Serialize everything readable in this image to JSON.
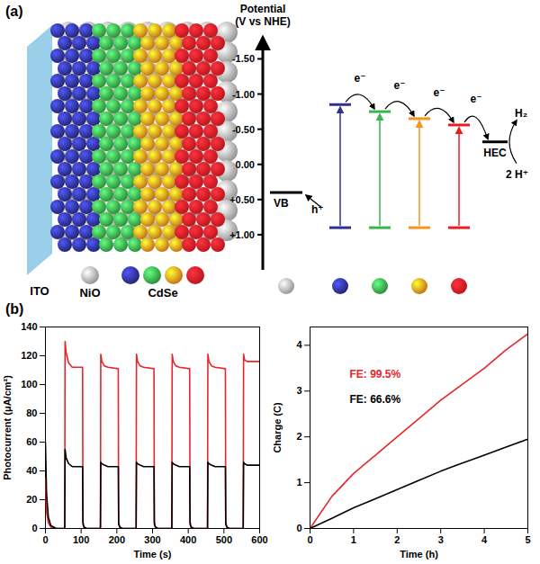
{
  "diagram": {
    "label": "(a)",
    "schematic": {
      "substrate": {
        "label": "ITO",
        "color": "#8ecae6"
      },
      "nio": {
        "label": "NiO",
        "color": "#bdbdbd"
      },
      "cdse": {
        "label": "CdSe",
        "colors": [
          "#2e3192",
          "#39b54a",
          "#f7941d",
          "#ed1c24"
        ]
      }
    },
    "energy": {
      "axis_title": [
        "Potential",
        "(V vs NHE)"
      ],
      "ylim": [
        -1.8,
        1.5
      ],
      "yticks": [
        {
          "value": -1.5,
          "label": "-1.50"
        },
        {
          "value": -1.0,
          "label": "-1.00"
        },
        {
          "value": -0.5,
          "label": "-0.50"
        },
        {
          "value": 0.0,
          "label": "0.00"
        },
        {
          "value": 0.5,
          "label": "+0.50"
        },
        {
          "value": 1.0,
          "label": "+1.00"
        }
      ],
      "vb": {
        "label": "VB",
        "value": 0.4,
        "color": "#000000"
      },
      "hole": "h⁺",
      "electron": "e⁻",
      "qds": [
        {
          "color": "#2e3192",
          "cb": -0.85,
          "vb": 0.9
        },
        {
          "color": "#39b54a",
          "cb": -0.75,
          "vb": 0.9
        },
        {
          "color": "#f7941d",
          "cb": -0.65,
          "vb": 0.9
        },
        {
          "color": "#ed1c24",
          "cb": -0.56,
          "vb": 0.9
        }
      ],
      "hec": {
        "label": "HEC",
        "value": -0.32
      },
      "product": "H₂",
      "reactant": "2 H⁺"
    }
  },
  "panel_b_label": "(b)",
  "chart_data": [
    {
      "type": "line",
      "x_label": "Time (s)",
      "y_label": "Photocurrent (μA/cm²)",
      "xlim": [
        0,
        600
      ],
      "xticks": [
        0,
        100,
        200,
        300,
        400,
        500,
        600
      ],
      "ylim": [
        0,
        140
      ],
      "yticks": [
        0,
        20,
        40,
        60,
        80,
        100,
        120,
        140
      ],
      "grid": false,
      "series": [
        {
          "color": "#e8262a",
          "x": [
            0,
            3,
            8,
            15,
            30,
            54,
            55,
            58,
            65,
            75,
            104,
            105,
            108,
            115,
            154,
            155,
            158,
            165,
            175,
            204,
            205,
            208,
            215,
            254,
            255,
            258,
            265,
            275,
            304,
            305,
            308,
            315,
            354,
            355,
            358,
            365,
            375,
            404,
            405,
            408,
            415,
            454,
            455,
            458,
            465,
            475,
            504,
            505,
            508,
            515,
            554,
            555,
            558,
            565,
            575,
            600
          ],
          "values": [
            35,
            12,
            4,
            1,
            0,
            0,
            130,
            122,
            115,
            112,
            112,
            5,
            1,
            0,
            0,
            121,
            116,
            113,
            112,
            111,
            5,
            1,
            0,
            0,
            121,
            116,
            113,
            112,
            111,
            5,
            1,
            0,
            0,
            121,
            116,
            113,
            112,
            111,
            5,
            1,
            0,
            0,
            121,
            116,
            113,
            112,
            111,
            5,
            1,
            0,
            0,
            121,
            117,
            116,
            116,
            116
          ]
        },
        {
          "color": "#000000",
          "x": [
            0,
            3,
            8,
            15,
            30,
            54,
            55,
            58,
            65,
            75,
            104,
            105,
            108,
            115,
            154,
            155,
            158,
            165,
            175,
            204,
            205,
            208,
            215,
            254,
            255,
            258,
            265,
            275,
            304,
            305,
            308,
            315,
            354,
            355,
            358,
            365,
            375,
            404,
            405,
            408,
            415,
            454,
            455,
            458,
            465,
            475,
            504,
            505,
            508,
            515,
            554,
            555,
            558,
            565,
            575,
            600
          ],
          "values": [
            60,
            25,
            8,
            2,
            0,
            0,
            55,
            49,
            45,
            43,
            43,
            3,
            1,
            0,
            0,
            46,
            45,
            44,
            43,
            43,
            3,
            1,
            0,
            0,
            46,
            45,
            44,
            43,
            43,
            3,
            1,
            0,
            0,
            46,
            45,
            44,
            43,
            43,
            3,
            1,
            0,
            0,
            46,
            45,
            44,
            43,
            43,
            3,
            1,
            0,
            0,
            46,
            45,
            44,
            44,
            44
          ]
        }
      ]
    },
    {
      "type": "line",
      "x_label": "Time (h)",
      "y_label": "Charge (C)",
      "xlim": [
        0,
        5
      ],
      "xticks": [
        0,
        1,
        2,
        3,
        4,
        5
      ],
      "ylim": [
        0,
        4.4
      ],
      "yticks": [
        0,
        1,
        2,
        3,
        4
      ],
      "grid": false,
      "x": [
        0,
        0.5,
        1,
        1.5,
        2,
        2.5,
        3,
        3.5,
        4,
        4.5,
        5
      ],
      "series": [
        {
          "color": "#e8262a",
          "annotation": "FE: 99.5%",
          "values": [
            0,
            0.7,
            1.2,
            1.6,
            2.0,
            2.4,
            2.8,
            3.15,
            3.5,
            3.9,
            4.25
          ]
        },
        {
          "color": "#000000",
          "annotation": "FE: 66.6%",
          "values": [
            0,
            0.22,
            0.45,
            0.65,
            0.85,
            1.05,
            1.25,
            1.43,
            1.6,
            1.78,
            1.95
          ]
        }
      ]
    }
  ]
}
